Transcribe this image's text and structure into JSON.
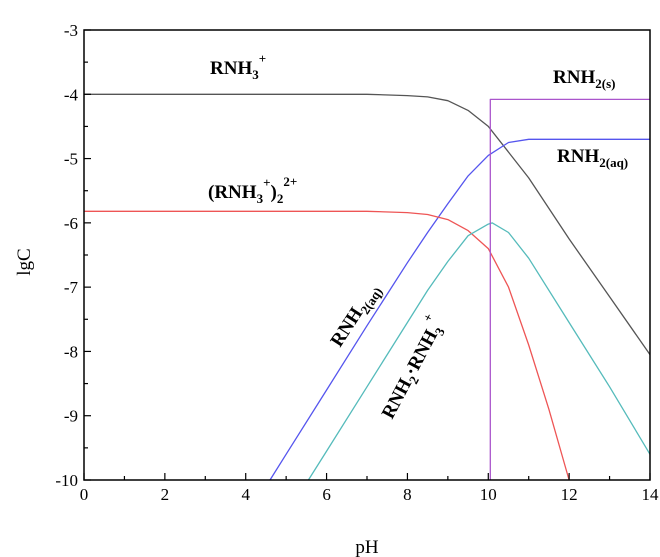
{
  "chart_data": {
    "type": "line",
    "xlabel": "pH",
    "ylabel": "lgC",
    "xlim": [
      0,
      14
    ],
    "ylim": [
      -10,
      -3
    ],
    "xticks": [
      "0",
      "2",
      "4",
      "6",
      "8",
      "10",
      "12",
      "14"
    ],
    "yticks": [
      "-10",
      "-9",
      "-8",
      "-7",
      "-6",
      "-5",
      "-4",
      "-3"
    ],
    "grid": false,
    "series": [
      {
        "key": "rnh3",
        "color": "#555555",
        "x": [
          0,
          6,
          7,
          8,
          8.5,
          9,
          9.5,
          10,
          10.5,
          11,
          12,
          13,
          14
        ],
        "y": [
          -4.0,
          -4.0,
          -4.0,
          -4.02,
          -4.04,
          -4.1,
          -4.25,
          -4.5,
          -4.9,
          -5.3,
          -6.25,
          -7.15,
          -8.05
        ]
      },
      {
        "key": "rnh2aq",
        "color": "#5555ee",
        "x": [
          4.6,
          5,
          6,
          7,
          8,
          8.5,
          9,
          9.5,
          10,
          10.5,
          11,
          12,
          14
        ],
        "y": [
          -10,
          -9.6,
          -8.6,
          -7.6,
          -6.62,
          -6.15,
          -5.7,
          -5.27,
          -4.95,
          -4.75,
          -4.7,
          -4.7,
          -4.7
        ]
      },
      {
        "key": "dimer",
        "color": "#ee5555",
        "x": [
          0,
          5,
          7,
          8,
          8.5,
          9,
          9.5,
          10,
          10.5,
          11,
          11.5,
          12
        ],
        "y": [
          -5.82,
          -5.82,
          -5.82,
          -5.84,
          -5.87,
          -5.95,
          -6.12,
          -6.4,
          -7.0,
          -7.9,
          -8.9,
          -10.0
        ]
      },
      {
        "key": "complex",
        "color": "#55bbbb",
        "x": [
          5.55,
          6,
          7,
          8,
          8.5,
          9,
          9.5,
          10,
          10.1,
          10.5,
          11,
          12,
          13,
          14
        ],
        "y": [
          -10,
          -9.55,
          -8.55,
          -7.55,
          -7.05,
          -6.6,
          -6.2,
          -6.02,
          -6.0,
          -6.15,
          -6.55,
          -7.55,
          -8.55,
          -9.6
        ]
      },
      {
        "key": "rnh2s",
        "color": "#aa55cc",
        "x": [
          10.05,
          10.05,
          14
        ],
        "y": [
          -10,
          -4.08,
          -4.08
        ]
      }
    ],
    "labels": [
      {
        "key": "rnh3",
        "main": "RNH",
        "sub": "3",
        "sup": "+"
      },
      {
        "key": "rnh2s",
        "main": "RNH",
        "sub": "2(s)"
      },
      {
        "key": "rnh2aq_right",
        "main": "RNH",
        "sub": "2(aq)"
      },
      {
        "key": "dimer",
        "open": "(RNH",
        "sub": "3",
        "sup": "+",
        "close": ")",
        "sub2": "2",
        "sup2": "2+"
      },
      {
        "key": "rnh2aq_rot",
        "main": "RNH",
        "sub": "2(aq)"
      },
      {
        "key": "complex",
        "main": "RNH",
        "sub": "2",
        "mid": "·RNH",
        "sub2": "3",
        "sup": "+"
      }
    ]
  }
}
